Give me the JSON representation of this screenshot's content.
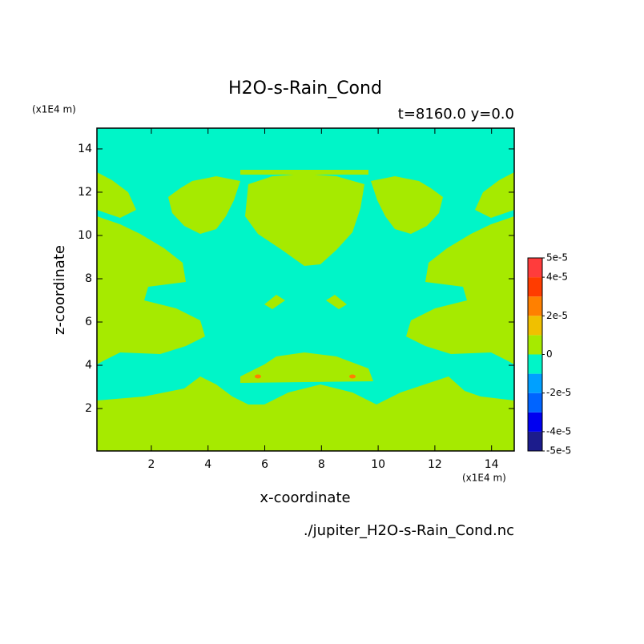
{
  "chart_data": {
    "type": "contour",
    "title": "H2O-s-Rain_Cond",
    "subtitle": "t=8160.0 y=0.0",
    "x_label": "x-coordinate",
    "y_label": "z-coordinate",
    "x_unit": "(x1E4 m)",
    "y_unit": "(x1E4 m)",
    "footer": "./jupiter_H2O-s-Rain_Cond.nc",
    "xlim": [
      0.08,
      14.8
    ],
    "ylim": [
      0.04,
      14.96
    ],
    "xticks": [
      2,
      4,
      6,
      8,
      10,
      12,
      14
    ],
    "yticks": [
      2,
      4,
      6,
      8,
      10,
      12,
      14
    ],
    "colorbar": {
      "levels": [
        -5e-05,
        -4e-05,
        -3e-05,
        -2e-05,
        -1e-05,
        0,
        1e-05,
        2e-05,
        3e-05,
        4e-05,
        5e-05
      ],
      "colors": [
        "#1c1c8c",
        "#0000f0",
        "#0064ff",
        "#00a0ff",
        "#00f5c8",
        "#a6ea00",
        "#f0c000",
        "#ff8000",
        "#ff3c00",
        "#ff3c3c"
      ],
      "ticks": [
        {
          "value": 5e-05,
          "label": "5e-5"
        },
        {
          "value": 4e-05,
          "label": "4e-5"
        },
        {
          "value": 2e-05,
          "label": "2e-5"
        },
        0,
        {
          "value": -2e-05,
          "label": "-2e-5"
        },
        {
          "value": -4e-05,
          "label": "-4e-5"
        },
        {
          "value": -5e-05,
          "label": "-5e-5"
        }
      ]
    }
  }
}
